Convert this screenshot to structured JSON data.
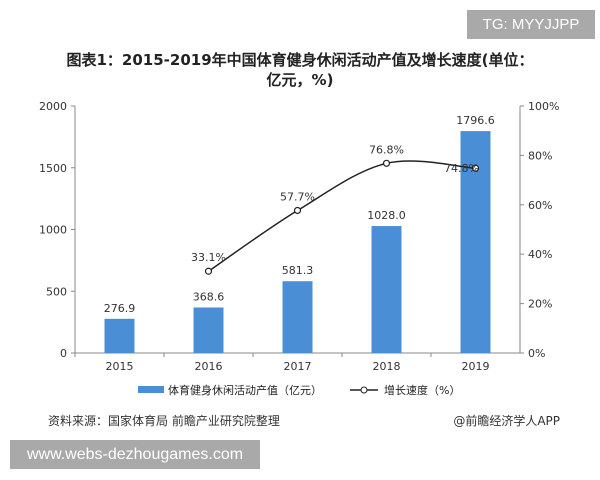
{
  "watermark_top": "TG: MYYJJPP",
  "watermark_bottom": "www.webs-dezhougames.com",
  "source": "资料来源：国家体育局 前瞻产业研究院整理",
  "credit": "@前瞻经济学人APP",
  "chart_data": {
    "type": "bar+line",
    "title": "图表1：2015-2019年中国体育健身休闲活动产值及增长速度(单位：亿元，%)",
    "categories": [
      "2015",
      "2016",
      "2017",
      "2018",
      "2019"
    ],
    "series": [
      {
        "name": "体育健身休闲活动产值（亿元）",
        "type": "bar",
        "axis": "left",
        "color": "#4a8fd6",
        "values": [
          276.9,
          368.6,
          581.3,
          1028.0,
          1796.6
        ],
        "labels": [
          "276.9",
          "368.6",
          "581.3",
          "1028.0",
          "1796.6"
        ]
      },
      {
        "name": "增长速度（%）",
        "type": "line",
        "axis": "right",
        "color": "#222222",
        "values": [
          null,
          33.1,
          57.7,
          76.8,
          74.8
        ],
        "labels": [
          "",
          "33.1%",
          "57.7%",
          "76.8%",
          "74.8%"
        ]
      }
    ],
    "y_left": {
      "range": [
        0,
        2000
      ],
      "ticks": [
        "0",
        "500",
        "1000",
        "1500",
        "2000"
      ]
    },
    "y_right": {
      "range": [
        0,
        100
      ],
      "ticks": [
        "0%",
        "20%",
        "40%",
        "60%",
        "80%",
        "100%"
      ]
    },
    "grid": false,
    "legend": "bottom"
  }
}
